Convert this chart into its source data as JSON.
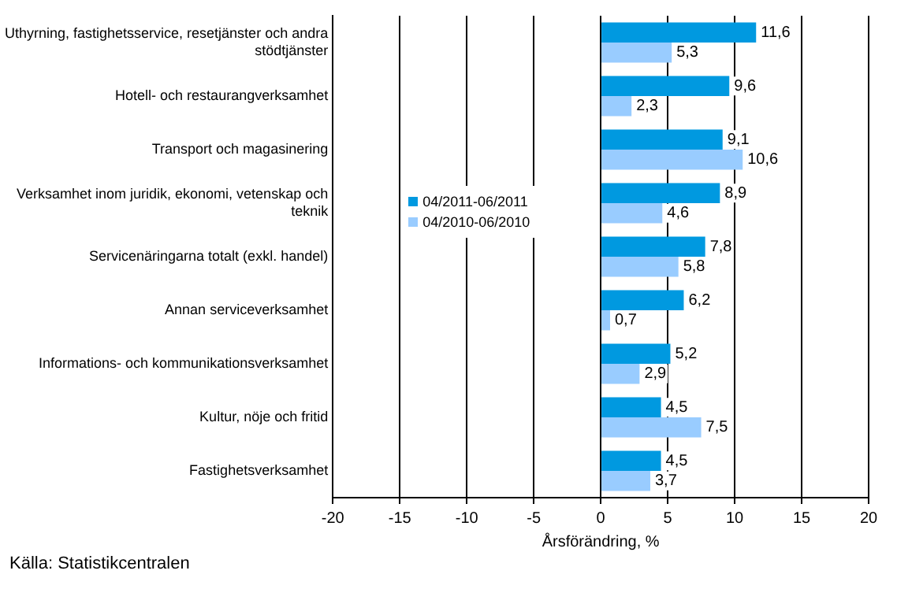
{
  "chart_data": {
    "type": "bar",
    "orientation": "horizontal",
    "categories": [
      "Uthyrning, fastighetsservice, resetjänster och andra stödtjänster",
      "Hotell- och restaurangverksamhet",
      "Transport och magasinering",
      "Verksamhet inom juridik, ekonomi, vetenskap och teknik",
      "Servicenäringarna totalt (exkl. handel)",
      "Annan serviceverksamhet",
      "Informations- och kommunikationsverksamhet",
      "Kultur, nöje och fritid",
      "Fastighetsverksamhet"
    ],
    "series": [
      {
        "name": "04/2011-06/2011",
        "color": "#0099e0",
        "values": [
          11.6,
          9.6,
          9.1,
          8.9,
          7.8,
          6.2,
          5.2,
          4.5,
          4.5
        ],
        "value_labels": [
          "11,6",
          "9,6",
          "9,1",
          "8,9",
          "7,8",
          "6,2",
          "5,2",
          "4,5",
          "4,5"
        ]
      },
      {
        "name": "04/2010-06/2010",
        "color": "#99ccff",
        "values": [
          5.3,
          2.3,
          10.6,
          4.6,
          5.8,
          0.7,
          2.9,
          7.5,
          3.7
        ],
        "value_labels": [
          "5,3",
          "2,3",
          "10,6",
          "4,6",
          "5,8",
          "0,7",
          "2,9",
          "7,5",
          "3,7"
        ]
      }
    ],
    "xlim": [
      -20,
      20
    ],
    "xticks": [
      -20,
      -15,
      -10,
      -5,
      0,
      5,
      10,
      15,
      20
    ],
    "xlabel": "Årsförändring, %",
    "grid": "x",
    "legend": "left",
    "annotations": [
      "Källa: Statistikcentralen"
    ]
  }
}
